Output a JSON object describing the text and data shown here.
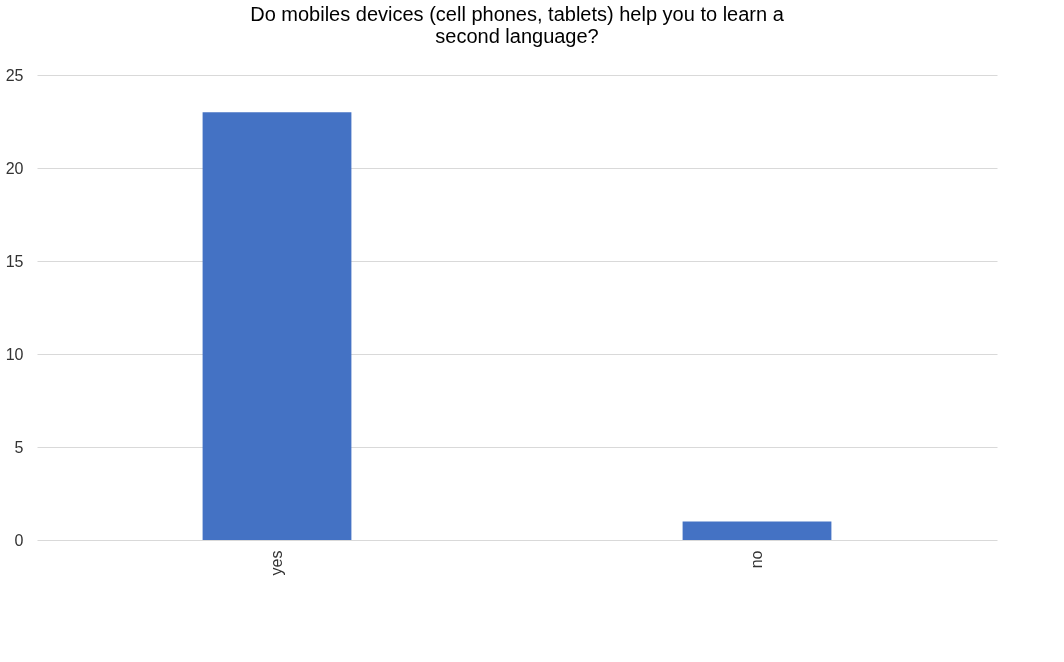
{
  "chart_data": {
    "type": "bar",
    "title": "Do mobiles devices (cell phones, tablets) help you to learn a second language?",
    "categories": [
      "yes",
      "no"
    ],
    "values": [
      23,
      1
    ],
    "color": "#4472c4",
    "ylim": [
      0,
      25
    ],
    "yticks": [
      0,
      5,
      10,
      15,
      20,
      25
    ],
    "grid": "y"
  }
}
